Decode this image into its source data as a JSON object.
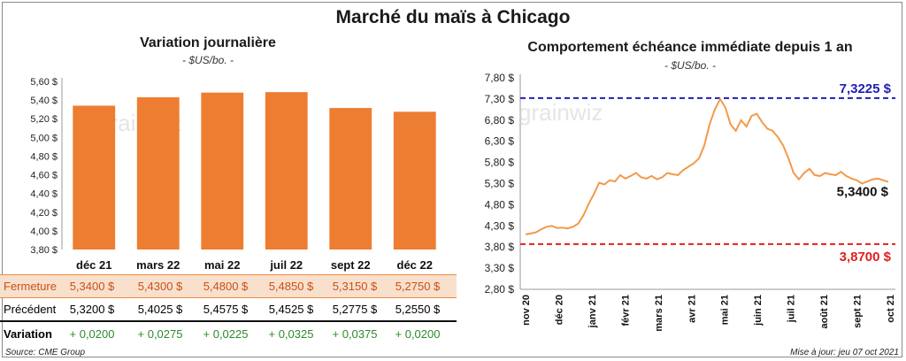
{
  "title": "Marché du maïs à Chicago",
  "left_panel": {
    "subtitle": "Variation journalière",
    "unit": "- $US/bo. -"
  },
  "right_panel": {
    "subtitle": "Comportement échéance immédiate depuis 1 an",
    "unit": "- $US/bo. -"
  },
  "watermark": "grainwiz",
  "table": {
    "row_labels": [
      "Fermeture",
      "Précédent",
      "Variation"
    ],
    "close": [
      "5,3400 $",
      "5,4300 $",
      "5,4800 $",
      "5,4850 $",
      "5,3150 $",
      "5,2750 $"
    ],
    "previous": [
      "5,3200 $",
      "5,4025 $",
      "5,4575 $",
      "5,4525 $",
      "5,2775 $",
      "5,2550 $"
    ],
    "variation": [
      "+ 0,0200",
      "+ 0,0275",
      "+ 0,0225",
      "+ 0,0325",
      "+ 0,0375",
      "+ 0,0200"
    ]
  },
  "footer": {
    "source": "Source: CME Group",
    "updated": "Mise à jour: jeu 07 oct 2021"
  },
  "colors": {
    "bar": "#ed7d31",
    "line": "#f29a4a",
    "high_line": "#1f1fb4",
    "low_line": "#e02020",
    "variation_text": "#2e8b2e"
  },
  "chart_data": [
    {
      "type": "bar",
      "title": "Variation journalière",
      "categories": [
        "déc 21",
        "mars 22",
        "mai 22",
        "juil 22",
        "sept 22",
        "déc 22"
      ],
      "values": [
        5.34,
        5.43,
        5.48,
        5.485,
        5.315,
        5.275
      ],
      "ylim": [
        3.8,
        5.6
      ],
      "yticks": [
        "3,80 $",
        "4,00 $",
        "4,20 $",
        "4,40 $",
        "4,60 $",
        "4,80 $",
        "5,00 $",
        "5,20 $",
        "5,40 $",
        "5,60 $"
      ],
      "grid": false
    },
    {
      "type": "line",
      "title": "Comportement échéance immédiate depuis 1 an",
      "x_labels": [
        "nov 20",
        "déc 20",
        "janv 21",
        "févr 21",
        "mars 21",
        "avr 21",
        "mai 21",
        "juin 21",
        "juil 21",
        "août 21",
        "sept 21",
        "oct 21"
      ],
      "ylim": [
        2.8,
        7.8
      ],
      "yticks": [
        "2,80 $",
        "3,30 $",
        "3,80 $",
        "4,30 $",
        "4,80 $",
        "5,30 $",
        "5,80 $",
        "6,30 $",
        "6,80 $",
        "7,30 $",
        "7,80 $"
      ],
      "values": [
        4.1,
        4.12,
        4.15,
        4.22,
        4.28,
        4.3,
        4.25,
        4.26,
        4.24,
        4.28,
        4.35,
        4.55,
        4.82,
        5.05,
        5.32,
        5.28,
        5.38,
        5.35,
        5.5,
        5.42,
        5.48,
        5.55,
        5.45,
        5.42,
        5.48,
        5.4,
        5.45,
        5.55,
        5.52,
        5.5,
        5.62,
        5.7,
        5.78,
        5.9,
        6.2,
        6.7,
        7.05,
        7.3,
        7.1,
        6.7,
        6.55,
        6.8,
        6.65,
        6.9,
        6.95,
        6.75,
        6.6,
        6.55,
        6.4,
        6.2,
        5.9,
        5.55,
        5.4,
        5.55,
        5.65,
        5.5,
        5.48,
        5.55,
        5.52,
        5.5,
        5.58,
        5.48,
        5.42,
        5.38,
        5.3,
        5.35,
        5.4,
        5.42,
        5.38,
        5.34
      ],
      "high": {
        "value": 7.3225,
        "label": "7,3225 $"
      },
      "low": {
        "value": 3.87,
        "label": "3,8700 $"
      },
      "last": {
        "value": 5.34,
        "label": "5,3400 $"
      },
      "grid": false
    }
  ]
}
